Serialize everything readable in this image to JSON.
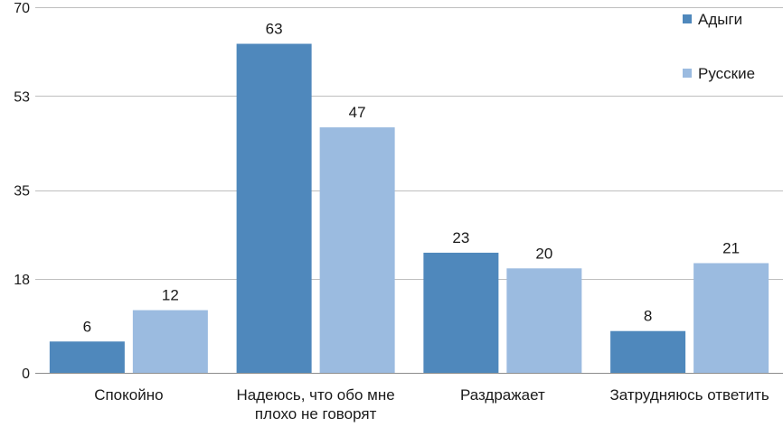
{
  "chart_data": {
    "type": "bar",
    "title": "",
    "xlabel": "",
    "ylabel": "",
    "categories": [
      [
        "Спокойно"
      ],
      [
        "Надеюсь, что обо мне",
        "плохо не говорят"
      ],
      [
        "Раздражает"
      ],
      [
        "Затрудняюсь ответить"
      ]
    ],
    "series": [
      {
        "name": "Адыги",
        "values": [
          6,
          63,
          23,
          8
        ],
        "color": "#4f88bc"
      },
      {
        "name": "Русские",
        "values": [
          12,
          47,
          20,
          21
        ],
        "color": "#9bbbe0"
      }
    ],
    "ylim": [
      0,
      70
    ],
    "yticks": [
      0,
      18,
      35,
      53,
      70
    ],
    "grid": true,
    "legend_position": "top-right",
    "data_labels": true
  }
}
